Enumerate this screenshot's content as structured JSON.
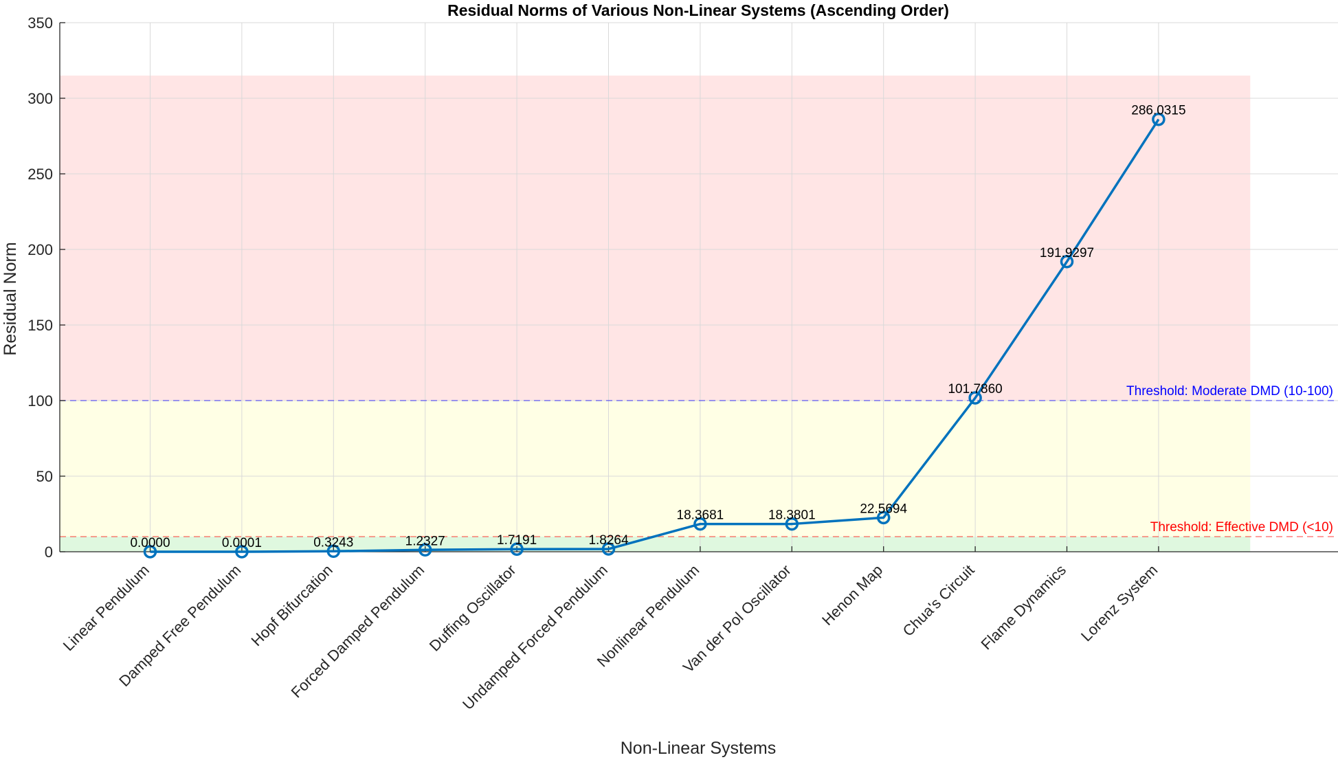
{
  "chart_data": {
    "type": "line",
    "title": "Residual Norms of Various Non-Linear Systems (Ascending Order)",
    "xlabel": "Non-Linear Systems",
    "ylabel": "Residual Norm",
    "ylim": [
      0,
      350
    ],
    "yticks": [
      0,
      50,
      100,
      150,
      200,
      250,
      300,
      350
    ],
    "grid": true,
    "categories": [
      "Linear Pendulum",
      "Damped Free Pendulum",
      "Hopf Bifurcation",
      "Forced Damped Pendulum",
      "Duffing Oscillator",
      "Undamped Forced Pendulum",
      "Nonlinear Pendulum",
      "Van der Pol Oscillator",
      "Henon Map",
      "Chua's Circuit",
      "Flame Dynamics",
      "Lorenz System"
    ],
    "values": [
      0.0,
      0.0001,
      0.3243,
      1.2327,
      1.7191,
      1.8264,
      18.3681,
      18.3801,
      22.5694,
      101.786,
      191.9297,
      286.0315
    ],
    "data_labels": [
      "0.0000",
      "0.0001",
      "0.3243",
      "1.2327",
      "1.7191",
      "1.8264",
      "18.3681",
      "18.3801",
      "22.5694",
      "101.7860",
      "191.9297",
      "286.0315"
    ],
    "line_color": "#0072BD",
    "regions": [
      {
        "from": 0,
        "to": 10,
        "color": "#DFF8DF"
      },
      {
        "from": 10,
        "to": 100,
        "color": "#FFFFE5"
      },
      {
        "from": 100,
        "to": 315,
        "color": "#FFE5E5"
      }
    ],
    "thresholds": [
      {
        "value": 10,
        "label": "Threshold: Effective DMD (<10)",
        "color": "#FF0000"
      },
      {
        "value": 100,
        "label": "Threshold: Moderate DMD (10-100)",
        "color": "#0000FF"
      }
    ]
  }
}
